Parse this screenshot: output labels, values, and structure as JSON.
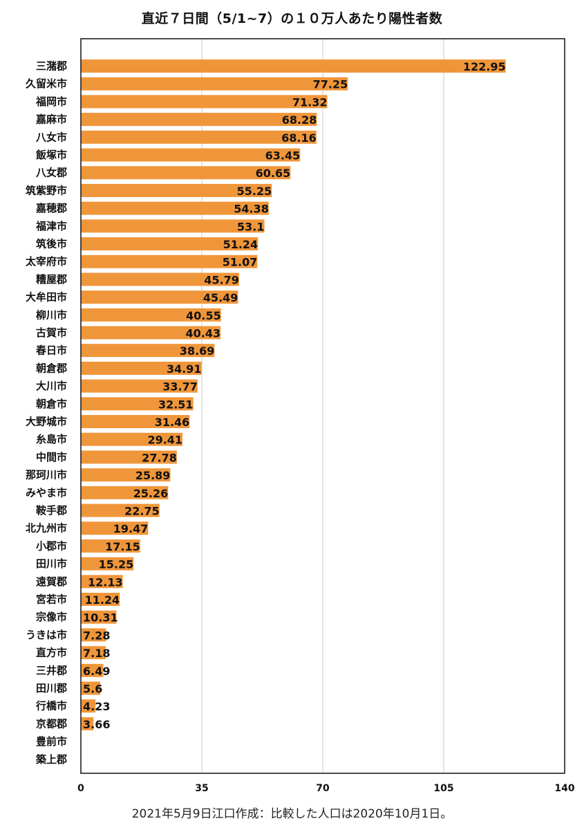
{
  "chart_data": {
    "type": "bar",
    "orientation": "horizontal",
    "title": "直近７日間（5/1~7）の１０万人あたり陽性者数",
    "categories": [
      "三潴郡",
      "久留米市",
      "福岡市",
      "嘉麻市",
      "八女市",
      "飯塚市",
      "八女郡",
      "筑紫野市",
      "嘉穂郡",
      "福津市",
      "筑後市",
      "太宰府市",
      "糟屋郡",
      "大牟田市",
      "柳川市",
      "古賀市",
      "春日市",
      "朝倉郡",
      "大川市",
      "朝倉市",
      "大野城市",
      "糸島市",
      "中間市",
      "那珂川市",
      "みやま市",
      "鞍手郡",
      "北九州市",
      "小郡市",
      "田川市",
      "遠賀郡",
      "宮若市",
      "宗像市",
      "うきは市",
      "直方市",
      "三井郡",
      "田川郡",
      "行橋市",
      "京都郡",
      "豊前市",
      "築上郡"
    ],
    "values": [
      122.95,
      77.25,
      71.32,
      68.28,
      68.16,
      63.45,
      60.65,
      55.25,
      54.38,
      53.1,
      51.24,
      51.07,
      45.79,
      45.49,
      40.55,
      40.43,
      38.69,
      34.91,
      33.77,
      32.51,
      31.46,
      29.41,
      27.78,
      25.89,
      25.26,
      22.75,
      19.47,
      17.15,
      15.25,
      12.13,
      11.24,
      10.31,
      7.28,
      7.18,
      6.49,
      5.6,
      4.23,
      3.66,
      null,
      null
    ],
    "value_labels": [
      "122.95",
      "77.25",
      "71.32",
      "68.28",
      "68.16",
      "63.45",
      "60.65",
      "55.25",
      "54.38",
      "53.1",
      "51.24",
      "51.07",
      "45.79",
      "45.49",
      "40.55",
      "40.43",
      "38.69",
      "34.91",
      "33.77",
      "32.51",
      "31.46",
      "29.41",
      "27.78",
      "25.89",
      "25.26",
      "22.75",
      "19.47",
      "17.15",
      "15.25",
      "12.13",
      "11.24",
      "10.31",
      "7.28",
      "7.18",
      "6.49",
      "5.6",
      "4.23",
      "3.66",
      "",
      ""
    ],
    "xlim": [
      0,
      140
    ],
    "x_ticks": [
      "0",
      "35",
      "70",
      "105",
      "140"
    ],
    "grid": true,
    "bar_color": "#F0963A",
    "footnote": "2021年5月9日江口作成：比較した人口は2020年10月1日。"
  }
}
